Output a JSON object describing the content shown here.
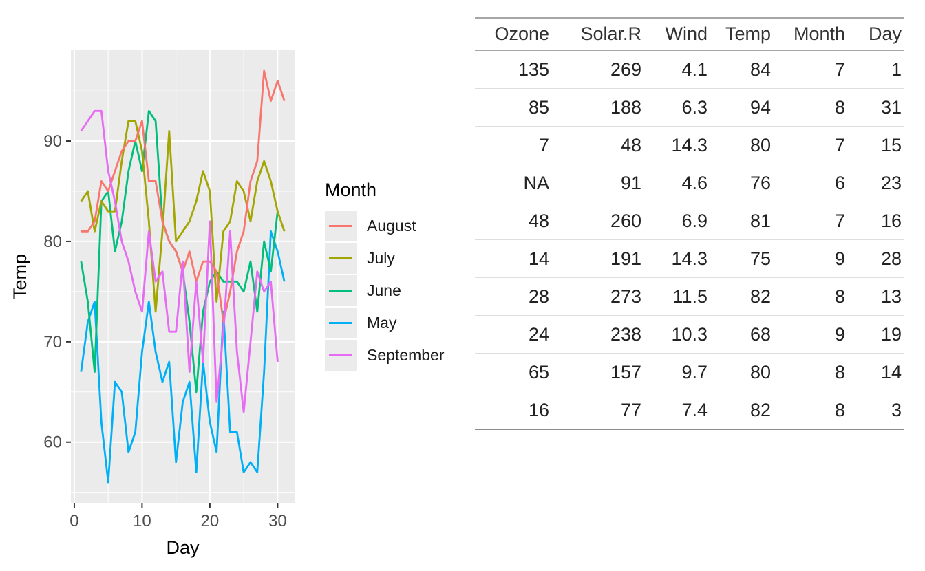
{
  "chart_data": {
    "type": "line",
    "title": "",
    "xlabel": "Day",
    "ylabel": "Temp",
    "x_ticks": [
      0,
      10,
      20,
      30
    ],
    "y_ticks": [
      60,
      70,
      80,
      90
    ],
    "xlim": [
      -0.5,
      32.5
    ],
    "ylim": [
      53.95,
      99.05
    ],
    "grid": "on",
    "legend_position": "right",
    "legend_title": "Month",
    "panel_bg": "#EBEBEB",
    "grid_color": "#FFFFFF",
    "tick_label_color": "#4D4D4D",
    "axis_title_color": "#000000",
    "series": [
      {
        "name": "August",
        "color": "#F8766D",
        "z": 4,
        "x_start": 1,
        "values": [
          81,
          81,
          82,
          86,
          85,
          87,
          89,
          90,
          90,
          92,
          86,
          86,
          82,
          80,
          79,
          77,
          79,
          76,
          78,
          78,
          77,
          72,
          75,
          79,
          81,
          86,
          88,
          97,
          94,
          96,
          94
        ]
      },
      {
        "name": "July",
        "color": "#A3A500",
        "z": 3,
        "x_start": 1,
        "values": [
          84,
          85,
          81,
          84,
          83,
          83,
          88,
          92,
          92,
          89,
          82,
          73,
          81,
          91,
          80,
          81,
          82,
          84,
          87,
          85,
          74,
          81,
          82,
          86,
          85,
          82,
          86,
          88,
          86,
          83,
          81
        ]
      },
      {
        "name": "June",
        "color": "#00BF7D",
        "z": 2,
        "x_start": 1,
        "values": [
          78,
          74,
          67,
          84,
          85,
          79,
          82,
          87,
          90,
          87,
          93,
          92,
          82,
          80,
          79,
          77,
          72,
          65,
          73,
          76,
          77,
          76,
          76,
          76,
          75,
          78,
          73,
          80,
          77,
          83
        ]
      },
      {
        "name": "May",
        "color": "#00B0F6",
        "z": 1,
        "x_start": 1,
        "values": [
          67,
          72,
          74,
          62,
          56,
          66,
          65,
          59,
          61,
          69,
          74,
          69,
          66,
          68,
          58,
          64,
          66,
          57,
          68,
          62,
          59,
          73,
          61,
          61,
          57,
          58,
          57,
          67,
          81,
          79,
          76
        ]
      },
      {
        "name": "September",
        "color": "#E76BF3",
        "z": 5,
        "x_start": 1,
        "values": [
          91,
          92,
          93,
          93,
          87,
          84,
          80,
          78,
          75,
          73,
          81,
          76,
          77,
          71,
          71,
          78,
          67,
          76,
          68,
          82,
          64,
          71,
          81,
          69,
          63,
          70,
          77,
          75,
          76,
          68
        ]
      }
    ]
  },
  "table": {
    "columns": [
      "Ozone",
      "Solar.R",
      "Wind",
      "Temp",
      "Month",
      "Day"
    ],
    "rows": [
      [
        "135",
        "269",
        "4.1",
        "84",
        "7",
        "1"
      ],
      [
        "85",
        "188",
        "6.3",
        "94",
        "8",
        "31"
      ],
      [
        "7",
        "48",
        "14.3",
        "80",
        "7",
        "15"
      ],
      [
        "NA",
        "91",
        "4.6",
        "76",
        "6",
        "23"
      ],
      [
        "48",
        "260",
        "6.9",
        "81",
        "7",
        "16"
      ],
      [
        "14",
        "191",
        "14.3",
        "75",
        "9",
        "28"
      ],
      [
        "28",
        "273",
        "11.5",
        "82",
        "8",
        "13"
      ],
      [
        "24",
        "238",
        "10.3",
        "68",
        "9",
        "19"
      ],
      [
        "65",
        "157",
        "9.7",
        "80",
        "8",
        "14"
      ],
      [
        "16",
        "77",
        "7.4",
        "82",
        "8",
        "3"
      ]
    ]
  }
}
